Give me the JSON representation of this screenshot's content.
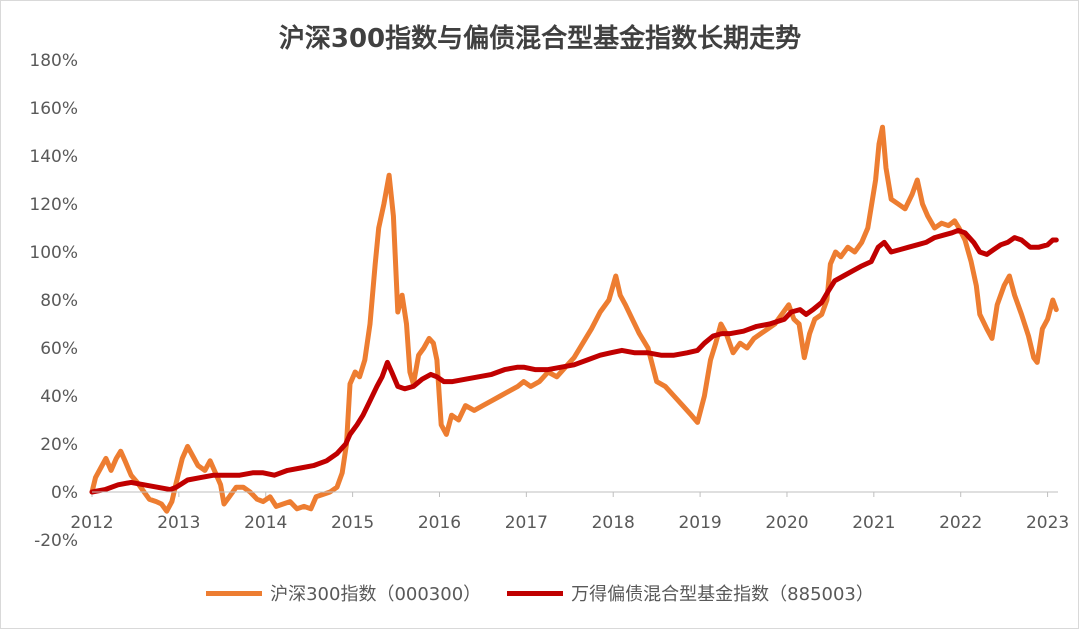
{
  "chart_data": {
    "type": "line",
    "title": "沪深300指数与偏债混合型基金指数长期走势",
    "xlabel": "",
    "ylabel": "",
    "x_ticks": [
      "2012",
      "2013",
      "2014",
      "2015",
      "2016",
      "2017",
      "2018",
      "2019",
      "2020",
      "2021",
      "2022",
      "2023"
    ],
    "x_range": [
      2012.0,
      2023.12
    ],
    "ylim": [
      -20,
      180
    ],
    "y_ticks": [
      -20,
      0,
      20,
      40,
      60,
      80,
      100,
      120,
      140,
      160,
      180
    ],
    "y_tick_labels": [
      "-20%",
      "0%",
      "20%",
      "40%",
      "60%",
      "80%",
      "100%",
      "120%",
      "140%",
      "160%",
      "180%"
    ],
    "grid": false,
    "legend_position": "bottom",
    "series": [
      {
        "name": "沪深300指数（000300）",
        "color": "#ed7d31",
        "points": [
          [
            2012.0,
            0
          ],
          [
            2012.04,
            6
          ],
          [
            2012.1,
            10
          ],
          [
            2012.16,
            14
          ],
          [
            2012.22,
            9
          ],
          [
            2012.28,
            14
          ],
          [
            2012.33,
            17
          ],
          [
            2012.38,
            13
          ],
          [
            2012.45,
            7
          ],
          [
            2012.52,
            4
          ],
          [
            2012.58,
            1
          ],
          [
            2012.66,
            -3
          ],
          [
            2012.74,
            -4
          ],
          [
            2012.8,
            -5
          ],
          [
            2012.86,
            -8
          ],
          [
            2012.92,
            -4
          ],
          [
            2012.97,
            4
          ],
          [
            2013.04,
            14
          ],
          [
            2013.1,
            19
          ],
          [
            2013.16,
            15
          ],
          [
            2013.22,
            11
          ],
          [
            2013.3,
            9
          ],
          [
            2013.36,
            13
          ],
          [
            2013.42,
            8
          ],
          [
            2013.48,
            3
          ],
          [
            2013.52,
            -5
          ],
          [
            2013.58,
            -2
          ],
          [
            2013.66,
            2
          ],
          [
            2013.74,
            2
          ],
          [
            2013.82,
            0
          ],
          [
            2013.9,
            -3
          ],
          [
            2013.97,
            -4
          ],
          [
            2014.05,
            -2
          ],
          [
            2014.12,
            -6
          ],
          [
            2014.2,
            -5
          ],
          [
            2014.28,
            -4
          ],
          [
            2014.36,
            -7
          ],
          [
            2014.44,
            -6
          ],
          [
            2014.52,
            -7
          ],
          [
            2014.58,
            -2
          ],
          [
            2014.66,
            -1
          ],
          [
            2014.74,
            0
          ],
          [
            2014.82,
            2
          ],
          [
            2014.88,
            8
          ],
          [
            2014.93,
            20
          ],
          [
            2014.97,
            45
          ],
          [
            2015.03,
            50
          ],
          [
            2015.08,
            48
          ],
          [
            2015.14,
            55
          ],
          [
            2015.2,
            70
          ],
          [
            2015.26,
            95
          ],
          [
            2015.3,
            110
          ],
          [
            2015.36,
            120
          ],
          [
            2015.42,
            132
          ],
          [
            2015.47,
            115
          ],
          [
            2015.52,
            75
          ],
          [
            2015.57,
            82
          ],
          [
            2015.62,
            70
          ],
          [
            2015.66,
            50
          ],
          [
            2015.7,
            45
          ],
          [
            2015.76,
            57
          ],
          [
            2015.82,
            60
          ],
          [
            2015.88,
            64
          ],
          [
            2015.93,
            62
          ],
          [
            2015.97,
            55
          ],
          [
            2016.02,
            28
          ],
          [
            2016.08,
            24
          ],
          [
            2016.14,
            32
          ],
          [
            2016.22,
            30
          ],
          [
            2016.3,
            36
          ],
          [
            2016.4,
            34
          ],
          [
            2016.5,
            36
          ],
          [
            2016.6,
            38
          ],
          [
            2016.7,
            40
          ],
          [
            2016.8,
            42
          ],
          [
            2016.9,
            44
          ],
          [
            2016.97,
            46
          ],
          [
            2017.05,
            44
          ],
          [
            2017.15,
            46
          ],
          [
            2017.25,
            50
          ],
          [
            2017.35,
            48
          ],
          [
            2017.45,
            52
          ],
          [
            2017.55,
            56
          ],
          [
            2017.65,
            62
          ],
          [
            2017.75,
            68
          ],
          [
            2017.85,
            75
          ],
          [
            2017.95,
            80
          ],
          [
            2018.03,
            90
          ],
          [
            2018.08,
            82
          ],
          [
            2018.14,
            78
          ],
          [
            2018.22,
            72
          ],
          [
            2018.3,
            66
          ],
          [
            2018.4,
            60
          ],
          [
            2018.5,
            46
          ],
          [
            2018.6,
            44
          ],
          [
            2018.7,
            40
          ],
          [
            2018.8,
            36
          ],
          [
            2018.9,
            32
          ],
          [
            2018.97,
            29
          ],
          [
            2019.05,
            40
          ],
          [
            2019.12,
            55
          ],
          [
            2019.18,
            62
          ],
          [
            2019.24,
            70
          ],
          [
            2019.3,
            66
          ],
          [
            2019.38,
            58
          ],
          [
            2019.46,
            62
          ],
          [
            2019.54,
            60
          ],
          [
            2019.62,
            64
          ],
          [
            2019.7,
            66
          ],
          [
            2019.78,
            68
          ],
          [
            2019.86,
            70
          ],
          [
            2019.94,
            74
          ],
          [
            2020.02,
            78
          ],
          [
            2020.08,
            72
          ],
          [
            2020.14,
            70
          ],
          [
            2020.2,
            56
          ],
          [
            2020.26,
            66
          ],
          [
            2020.32,
            72
          ],
          [
            2020.4,
            74
          ],
          [
            2020.46,
            80
          ],
          [
            2020.5,
            95
          ],
          [
            2020.56,
            100
          ],
          [
            2020.62,
            98
          ],
          [
            2020.7,
            102
          ],
          [
            2020.78,
            100
          ],
          [
            2020.86,
            104
          ],
          [
            2020.93,
            110
          ],
          [
            2021.02,
            130
          ],
          [
            2021.06,
            145
          ],
          [
            2021.1,
            152
          ],
          [
            2021.14,
            135
          ],
          [
            2021.2,
            122
          ],
          [
            2021.28,
            120
          ],
          [
            2021.36,
            118
          ],
          [
            2021.44,
            124
          ],
          [
            2021.5,
            130
          ],
          [
            2021.56,
            120
          ],
          [
            2021.62,
            115
          ],
          [
            2021.7,
            110
          ],
          [
            2021.78,
            112
          ],
          [
            2021.86,
            111
          ],
          [
            2021.93,
            113
          ],
          [
            2021.98,
            110
          ],
          [
            2022.05,
            105
          ],
          [
            2022.12,
            96
          ],
          [
            2022.18,
            86
          ],
          [
            2022.22,
            74
          ],
          [
            2022.3,
            68
          ],
          [
            2022.36,
            64
          ],
          [
            2022.42,
            78
          ],
          [
            2022.5,
            86
          ],
          [
            2022.56,
            90
          ],
          [
            2022.62,
            82
          ],
          [
            2022.7,
            74
          ],
          [
            2022.78,
            65
          ],
          [
            2022.84,
            56
          ],
          [
            2022.88,
            54
          ],
          [
            2022.94,
            68
          ],
          [
            2023.0,
            72
          ],
          [
            2023.06,
            80
          ],
          [
            2023.1,
            76
          ]
        ]
      },
      {
        "name": "万得偏债混合型基金指数（885003）",
        "color": "#c00000",
        "points": [
          [
            2012.0,
            0
          ],
          [
            2012.15,
            1
          ],
          [
            2012.3,
            3
          ],
          [
            2012.45,
            4
          ],
          [
            2012.6,
            3
          ],
          [
            2012.75,
            2
          ],
          [
            2012.9,
            1
          ],
          [
            2012.97,
            2
          ],
          [
            2013.1,
            5
          ],
          [
            2013.25,
            6
          ],
          [
            2013.4,
            7
          ],
          [
            2013.55,
            7
          ],
          [
            2013.7,
            7
          ],
          [
            2013.85,
            8
          ],
          [
            2013.97,
            8
          ],
          [
            2014.1,
            7
          ],
          [
            2014.25,
            9
          ],
          [
            2014.4,
            10
          ],
          [
            2014.55,
            11
          ],
          [
            2014.7,
            13
          ],
          [
            2014.82,
            16
          ],
          [
            2014.92,
            20
          ],
          [
            2014.97,
            24
          ],
          [
            2015.05,
            28
          ],
          [
            2015.12,
            32
          ],
          [
            2015.2,
            38
          ],
          [
            2015.28,
            44
          ],
          [
            2015.34,
            48
          ],
          [
            2015.4,
            54
          ],
          [
            2015.45,
            50
          ],
          [
            2015.52,
            44
          ],
          [
            2015.6,
            43
          ],
          [
            2015.7,
            44
          ],
          [
            2015.8,
            47
          ],
          [
            2015.9,
            49
          ],
          [
            2015.97,
            48
          ],
          [
            2016.05,
            46
          ],
          [
            2016.15,
            46
          ],
          [
            2016.3,
            47
          ],
          [
            2016.45,
            48
          ],
          [
            2016.6,
            49
          ],
          [
            2016.75,
            51
          ],
          [
            2016.9,
            52
          ],
          [
            2016.97,
            52
          ],
          [
            2017.1,
            51
          ],
          [
            2017.25,
            51
          ],
          [
            2017.4,
            52
          ],
          [
            2017.55,
            53
          ],
          [
            2017.7,
            55
          ],
          [
            2017.85,
            57
          ],
          [
            2017.97,
            58
          ],
          [
            2018.1,
            59
          ],
          [
            2018.25,
            58
          ],
          [
            2018.4,
            58
          ],
          [
            2018.55,
            57
          ],
          [
            2018.7,
            57
          ],
          [
            2018.85,
            58
          ],
          [
            2018.97,
            59
          ],
          [
            2019.05,
            62
          ],
          [
            2019.15,
            65
          ],
          [
            2019.25,
            66
          ],
          [
            2019.35,
            66
          ],
          [
            2019.5,
            67
          ],
          [
            2019.65,
            69
          ],
          [
            2019.8,
            70
          ],
          [
            2019.97,
            72
          ],
          [
            2020.05,
            75
          ],
          [
            2020.15,
            76
          ],
          [
            2020.22,
            74
          ],
          [
            2020.3,
            76
          ],
          [
            2020.4,
            79
          ],
          [
            2020.48,
            84
          ],
          [
            2020.55,
            88
          ],
          [
            2020.65,
            90
          ],
          [
            2020.75,
            92
          ],
          [
            2020.85,
            94
          ],
          [
            2020.97,
            96
          ],
          [
            2021.05,
            102
          ],
          [
            2021.12,
            104
          ],
          [
            2021.2,
            100
          ],
          [
            2021.3,
            101
          ],
          [
            2021.4,
            102
          ],
          [
            2021.5,
            103
          ],
          [
            2021.6,
            104
          ],
          [
            2021.7,
            106
          ],
          [
            2021.8,
            107
          ],
          [
            2021.9,
            108
          ],
          [
            2021.97,
            109
          ],
          [
            2022.05,
            108
          ],
          [
            2022.15,
            104
          ],
          [
            2022.22,
            100
          ],
          [
            2022.3,
            99
          ],
          [
            2022.38,
            101
          ],
          [
            2022.46,
            103
          ],
          [
            2022.54,
            104
          ],
          [
            2022.62,
            106
          ],
          [
            2022.7,
            105
          ],
          [
            2022.8,
            102
          ],
          [
            2022.9,
            102
          ],
          [
            2023.0,
            103
          ],
          [
            2023.06,
            105
          ],
          [
            2023.1,
            105
          ]
        ]
      }
    ]
  }
}
